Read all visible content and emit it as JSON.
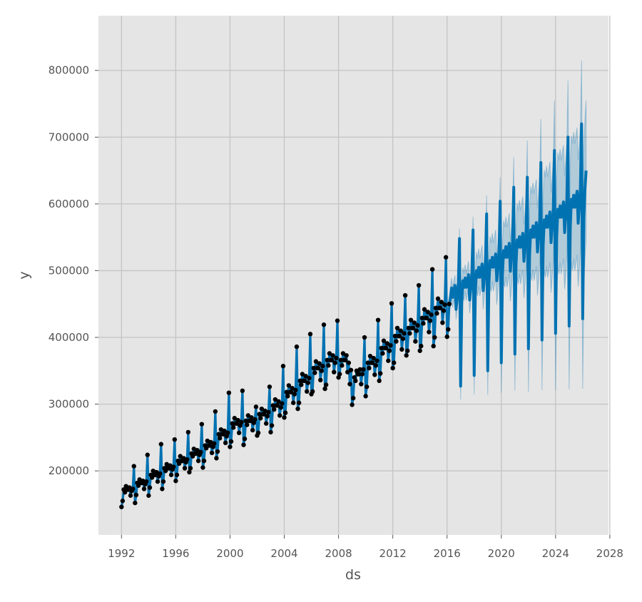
{
  "chart_data": {
    "type": "line",
    "xlabel": "ds",
    "ylabel": "y",
    "xlim": [
      1990.3,
      2027.9
    ],
    "ylim": [
      104000,
      882000
    ],
    "x_ticks": [
      "1992",
      "1996",
      "2000",
      "2004",
      "2008",
      "2012",
      "2016",
      "2020",
      "2024",
      "2028"
    ],
    "y_ticks": [
      "200000",
      "300000",
      "400000",
      "500000",
      "600000",
      "700000",
      "800000"
    ],
    "grid": true,
    "legend": "none",
    "colors": {
      "background": "#e5e5e5",
      "grid": "#c4c4c4",
      "forecast": "#0072b2",
      "interval": "#0072b2",
      "observed": "#000000"
    },
    "observed": [
      {
        "year": 1992,
        "values": [
          146000,
          155000,
          172000,
          168000,
          177000,
          172000,
          172000,
          175000,
          163000,
          170000,
          173000,
          207000
        ]
      },
      {
        "year": 1993,
        "values": [
          152000,
          164000,
          182000,
          178000,
          187000,
          182000,
          182000,
          185000,
          173000,
          180000,
          184000,
          224000
        ]
      },
      {
        "year": 1994,
        "values": [
          163000,
          175000,
          194000,
          190000,
          200000,
          194000,
          194000,
          198000,
          184000,
          192000,
          196000,
          240000
        ]
      },
      {
        "year": 1995,
        "values": [
          173000,
          184000,
          204000,
          200000,
          210000,
          204000,
          204000,
          208000,
          194000,
          202000,
          206000,
          247000
        ]
      },
      {
        "year": 1996,
        "values": [
          185000,
          194000,
          215000,
          211000,
          222000,
          215000,
          215000,
          219000,
          204000,
          213000,
          217000,
          258000
        ]
      },
      {
        "year": 1997,
        "values": [
          198000,
          204000,
          226000,
          222000,
          233000,
          226000,
          226000,
          231000,
          215000,
          224000,
          228000,
          270000
        ]
      },
      {
        "year": 1998,
        "values": [
          205000,
          215000,
          238000,
          234000,
          245000,
          238000,
          238000,
          243000,
          227000,
          236000,
          241000,
          289000
        ]
      },
      {
        "year": 1999,
        "values": [
          219000,
          229000,
          255000,
          249000,
          262000,
          255000,
          255000,
          260000,
          242000,
          252000,
          257000,
          317000
        ]
      },
      {
        "year": 2000,
        "values": [
          236000,
          244000,
          271000,
          265000,
          279000,
          271000,
          271000,
          276000,
          257000,
          268000,
          273000,
          320000
        ]
      },
      {
        "year": 2001,
        "values": [
          239000,
          248000,
          275000,
          269000,
          283000,
          275000,
          275000,
          280000,
          261000,
          272000,
          277000,
          296000
        ]
      },
      {
        "year": 2002,
        "values": [
          253000,
          257000,
          285000,
          279000,
          293000,
          285000,
          285000,
          290000,
          271000,
          282000,
          288000,
          326000
        ]
      },
      {
        "year": 2003,
        "values": [
          258000,
          268000,
          298000,
          292000,
          307000,
          298000,
          298000,
          304000,
          283000,
          295000,
          301000,
          357000
        ]
      },
      {
        "year": 2004,
        "values": [
          280000,
          287000,
          318000,
          312000,
          328000,
          318000,
          318000,
          324000,
          302000,
          315000,
          321000,
          386000
        ]
      },
      {
        "year": 2005,
        "values": [
          293000,
          302000,
          335000,
          329000,
          345000,
          335000,
          335000,
          342000,
          319000,
          332000,
          339000,
          405000
        ]
      },
      {
        "year": 2006,
        "values": [
          315000,
          319000,
          354000,
          347000,
          364000,
          354000,
          354000,
          361000,
          336000,
          350000,
          357000,
          419000
        ]
      },
      {
        "year": 2007,
        "values": [
          323000,
          329000,
          366000,
          358000,
          376000,
          366000,
          366000,
          373000,
          348000,
          362000,
          369000,
          425000
        ]
      },
      {
        "year": 2008,
        "values": [
          340000,
          345000,
          366000,
          358000,
          376000,
          366000,
          366000,
          373000,
          348000,
          362000,
          330000,
          351000
        ]
      },
      {
        "year": 2009,
        "values": [
          299000,
          309000,
          340000,
          335000,
          350000,
          345000,
          345000,
          352000,
          330000,
          345000,
          352000,
          400000
        ]
      },
      {
        "year": 2010,
        "values": [
          312000,
          326000,
          362000,
          354000,
          372000,
          362000,
          362000,
          369000,
          344000,
          358000,
          365000,
          426000
        ]
      },
      {
        "year": 2011,
        "values": [
          335000,
          346000,
          384000,
          376000,
          395000,
          384000,
          384000,
          391000,
          365000,
          380000,
          388000,
          451000
        ]
      },
      {
        "year": 2012,
        "values": [
          354000,
          362000,
          402000,
          394000,
          414000,
          402000,
          402000,
          410000,
          382000,
          398000,
          406000,
          463000
        ]
      },
      {
        "year": 2013,
        "values": [
          373000,
          380000,
          414000,
          406000,
          426000,
          414000,
          414000,
          422000,
          394000,
          410000,
          418000,
          478000
        ]
      },
      {
        "year": 2014,
        "values": [
          380000,
          387000,
          429000,
          421000,
          442000,
          429000,
          429000,
          438000,
          408000,
          425000,
          434000,
          502000
        ]
      },
      {
        "year": 2015,
        "values": [
          387000,
          400000,
          444000,
          436000,
          458000,
          444000,
          444000,
          453000,
          422000,
          440000,
          449000,
          520000
        ]
      },
      {
        "year": 2016,
        "values": [
          401000,
          412000,
          450000
        ]
      }
    ],
    "forecast": [
      {
        "year": 2016,
        "start_month": 4,
        "yhat": [
          460000,
          474000,
          460000,
          469000,
          478000,
          442000,
          460000,
          483000,
          548000
        ],
        "lower": [
          445000,
          459000,
          445000,
          454000,
          463000,
          427000,
          445000,
          468000,
          533000
        ],
        "upper": [
          475000,
          489000,
          475000,
          484000,
          493000,
          457000,
          475000,
          498000,
          563000
        ]
      },
      {
        "year": 2017,
        "start_month": 1,
        "yhat": [
          327000,
          451000,
          485000,
          475000,
          489000,
          475000,
          485000,
          494000,
          456000,
          475000,
          499000,
          561000
        ],
        "lower": [
          307000,
          431000,
          465000,
          455000,
          469000,
          455000,
          465000,
          474000,
          436000,
          455000,
          479000,
          541000
        ],
        "upper": [
          347000,
          471000,
          505000,
          495000,
          509000,
          495000,
          505000,
          514000,
          476000,
          495000,
          519000,
          581000
        ]
      },
      {
        "year": 2018,
        "start_month": 1,
        "yhat": [
          343000,
          466000,
          500000,
          490000,
          505000,
          490000,
          500000,
          510000,
          470000,
          490000,
          515000,
          585000
        ],
        "lower": [
          315000,
          438000,
          472000,
          462000,
          477000,
          462000,
          472000,
          482000,
          442000,
          462000,
          487000,
          557000
        ],
        "upper": [
          371000,
          494000,
          528000,
          518000,
          533000,
          518000,
          528000,
          538000,
          498000,
          518000,
          543000,
          613000
        ]
      },
      {
        "year": 2019,
        "start_month": 1,
        "yhat": [
          350000,
          480000,
          515000,
          505000,
          520000,
          505000,
          515000,
          525000,
          485000,
          505000,
          530000,
          604000
        ],
        "lower": [
          314000,
          444000,
          479000,
          469000,
          484000,
          469000,
          479000,
          489000,
          449000,
          469000,
          494000,
          568000
        ],
        "upper": [
          386000,
          516000,
          551000,
          541000,
          556000,
          541000,
          551000,
          561000,
          521000,
          541000,
          566000,
          640000
        ]
      },
      {
        "year": 2020,
        "start_month": 1,
        "yhat": [
          362000,
          494000,
          530000,
          520000,
          536000,
          520000,
          530000,
          541000,
          499000,
          520000,
          546000,
          625000
        ],
        "lower": [
          317000,
          449000,
          485000,
          475000,
          491000,
          475000,
          485000,
          496000,
          454000,
          475000,
          501000,
          580000
        ],
        "upper": [
          407000,
          539000,
          575000,
          565000,
          581000,
          565000,
          575000,
          586000,
          544000,
          565000,
          591000,
          670000
        ]
      },
      {
        "year": 2021,
        "start_month": 1,
        "yhat": [
          375000,
          508000,
          546000,
          535000,
          551000,
          535000,
          546000,
          556000,
          514000,
          535000,
          562000,
          640000
        ],
        "lower": [
          320000,
          453000,
          491000,
          480000,
          496000,
          480000,
          491000,
          501000,
          459000,
          480000,
          507000,
          585000
        ],
        "upper": [
          430000,
          563000,
          601000,
          590000,
          606000,
          590000,
          601000,
          611000,
          569000,
          590000,
          617000,
          695000
        ]
      },
      {
        "year": 2022,
        "start_month": 1,
        "yhat": [
          383000,
          523000,
          561000,
          550000,
          567000,
          550000,
          561000,
          572000,
          528000,
          550000,
          578000,
          662000
        ],
        "lower": [
          318000,
          458000,
          496000,
          485000,
          502000,
          485000,
          496000,
          507000,
          463000,
          485000,
          513000,
          597000
        ],
        "upper": [
          448000,
          588000,
          626000,
          615000,
          632000,
          615000,
          626000,
          637000,
          593000,
          615000,
          643000,
          727000
        ]
      },
      {
        "year": 2023,
        "start_month": 1,
        "yhat": [
          396000,
          537000,
          576000,
          565000,
          582000,
          565000,
          576000,
          588000,
          542000,
          565000,
          593000,
          680000
        ],
        "lower": [
          321000,
          462000,
          501000,
          490000,
          507000,
          490000,
          501000,
          513000,
          467000,
          490000,
          518000,
          605000
        ],
        "upper": [
          471000,
          612000,
          651000,
          640000,
          657000,
          640000,
          651000,
          663000,
          617000,
          640000,
          668000,
          755000
        ]
      },
      {
        "year": 2024,
        "start_month": 1,
        "yhat": [
          406000,
          551000,
          592000,
          580000,
          597000,
          580000,
          592000,
          603000,
          557000,
          580000,
          609000,
          700000
        ],
        "lower": [
          321000,
          466000,
          507000,
          495000,
          512000,
          495000,
          507000,
          518000,
          472000,
          495000,
          524000,
          615000
        ],
        "upper": [
          491000,
          636000,
          677000,
          665000,
          682000,
          665000,
          677000,
          688000,
          642000,
          665000,
          694000,
          785000
        ]
      },
      {
        "year": 2025,
        "start_month": 1,
        "yhat": [
          417000,
          565000,
          607000,
          595000,
          613000,
          595000,
          607000,
          619000,
          571000,
          595000,
          625000,
          720000
        ],
        "lower": [
          322000,
          470000,
          512000,
          500000,
          518000,
          500000,
          512000,
          524000,
          476000,
          500000,
          530000,
          625000
        ],
        "upper": [
          512000,
          660000,
          702000,
          690000,
          708000,
          690000,
          702000,
          714000,
          666000,
          690000,
          720000,
          815000
        ]
      },
      {
        "year": 2026,
        "start_month": 1,
        "yhat": [
          428000,
          580000,
          622000,
          650000
        ],
        "lower": [
          323000,
          475000,
          517000,
          545000
        ],
        "upper": [
          533000,
          685000,
          727000,
          755000
        ]
      }
    ]
  }
}
